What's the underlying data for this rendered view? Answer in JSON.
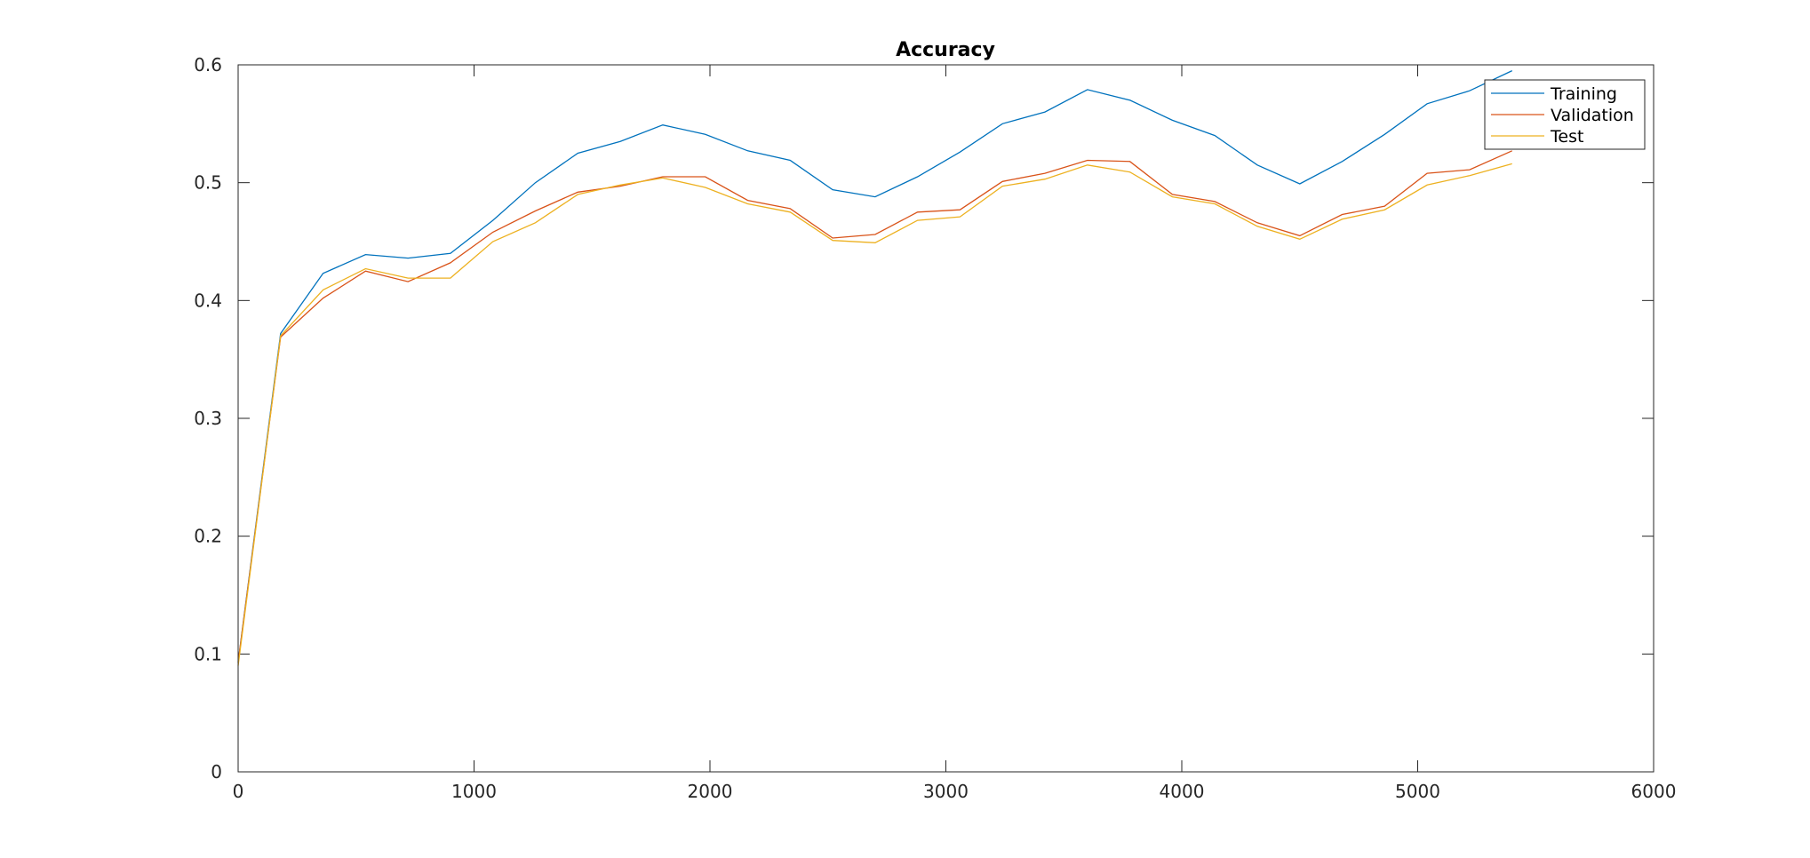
{
  "chart_data": {
    "type": "line",
    "title": "Accuracy",
    "xlabel": "",
    "ylabel": "",
    "xlim": [
      0,
      6000
    ],
    "ylim": [
      0,
      0.6
    ],
    "xticks": [
      0,
      1000,
      2000,
      3000,
      4000,
      5000,
      6000
    ],
    "yticks": [
      0,
      0.1,
      0.2,
      0.3,
      0.4,
      0.5,
      0.6
    ],
    "xtick_labels": [
      "0",
      "1000",
      "2000",
      "3000",
      "4000",
      "5000",
      "6000"
    ],
    "ytick_labels": [
      "0",
      "0.1",
      "0.2",
      "0.3",
      "0.4",
      "0.5",
      "0.6"
    ],
    "grid": false,
    "legend_position": "top-right",
    "x": [
      0,
      180,
      360,
      540,
      720,
      900,
      1080,
      1260,
      1440,
      1620,
      1800,
      1980,
      2160,
      2340,
      2520,
      2700,
      2880,
      3060,
      3240,
      3420,
      3600,
      3780,
      3960,
      4140,
      4320,
      4500,
      4680,
      4860,
      5040,
      5220,
      5400
    ],
    "series": [
      {
        "name": "Training",
        "color": "#0072BD",
        "values": [
          0.093,
          0.372,
          0.423,
          0.439,
          0.436,
          0.44,
          0.468,
          0.5,
          0.525,
          0.535,
          0.549,
          0.541,
          0.527,
          0.519,
          0.494,
          0.488,
          0.505,
          0.526,
          0.55,
          0.56,
          0.579,
          0.57,
          0.553,
          0.54,
          0.515,
          0.499,
          0.518,
          0.541,
          0.567,
          0.578,
          0.595
        ]
      },
      {
        "name": "Validation",
        "color": "#D95319",
        "values": [
          0.093,
          0.369,
          0.402,
          0.425,
          0.416,
          0.432,
          0.458,
          0.476,
          0.492,
          0.497,
          0.505,
          0.505,
          0.485,
          0.478,
          0.453,
          0.456,
          0.475,
          0.477,
          0.501,
          0.508,
          0.519,
          0.518,
          0.49,
          0.484,
          0.466,
          0.455,
          0.473,
          0.48,
          0.508,
          0.511,
          0.527
        ]
      },
      {
        "name": "Test",
        "color": "#EDB120",
        "values": [
          0.09,
          0.37,
          0.409,
          0.427,
          0.419,
          0.419,
          0.45,
          0.466,
          0.49,
          0.498,
          0.504,
          0.496,
          0.482,
          0.475,
          0.451,
          0.449,
          0.468,
          0.471,
          0.497,
          0.503,
          0.515,
          0.509,
          0.488,
          0.482,
          0.463,
          0.452,
          0.469,
          0.477,
          0.498,
          0.506,
          0.516
        ]
      }
    ]
  }
}
